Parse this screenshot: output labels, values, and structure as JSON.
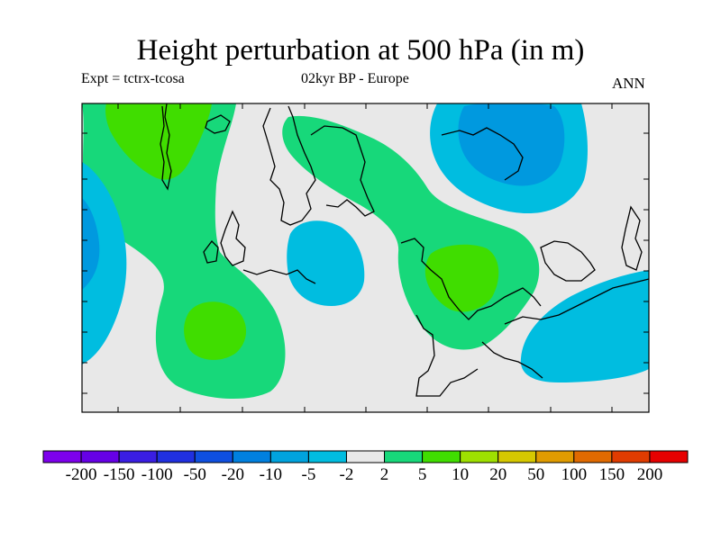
{
  "title": "Height perturbation at 500 hPa (in m)",
  "subtitle_left": "Expt = tctrx-tcosa",
  "subtitle_center": "02kyr BP - Europe",
  "subtitle_right": "ANN",
  "colors": {
    "background_field": "#e8e8e8",
    "green_light": "#17d87a",
    "green_bright": "#40dd00",
    "blue_cyan": "#00bde0",
    "blue_mid": "#0099df",
    "coastline": "#000000"
  },
  "colorbar": {
    "colors": [
      "#7d00ec",
      "#6600e6",
      "#3a1ee3",
      "#2030e0",
      "#0f4fe0",
      "#0080df",
      "#00a3de",
      "#00bde0",
      "#e8e8e8",
      "#17d87a",
      "#40dd00",
      "#9ee000",
      "#d6c800",
      "#e09b00",
      "#e06a00",
      "#e03c00",
      "#e60000"
    ],
    "labels": [
      "-200",
      "-150",
      "-100",
      "-50",
      "-20",
      "-10",
      "-5",
      "-2",
      "2",
      "5",
      "10",
      "20",
      "50",
      "100",
      "150",
      "200"
    ]
  }
}
